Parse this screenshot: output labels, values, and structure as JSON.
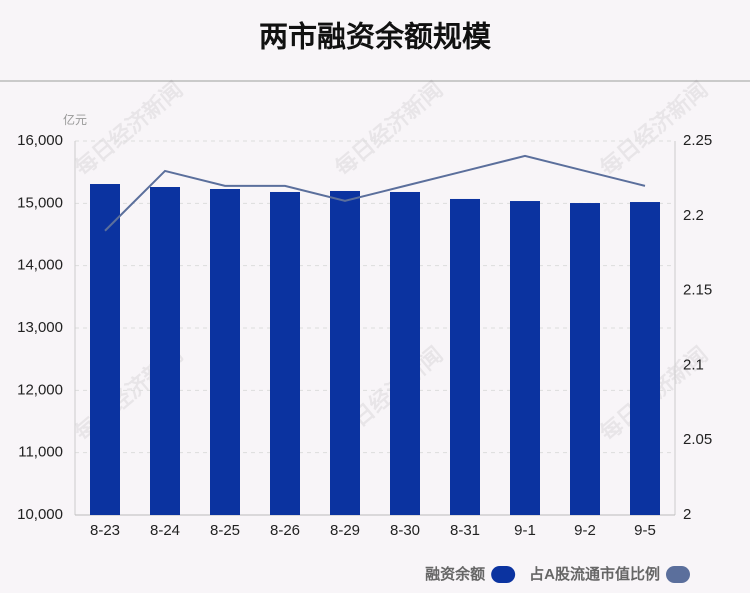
{
  "chart_data": {
    "type": "bar-line",
    "title": "两市融资余额规模",
    "y_unit": "亿元",
    "watermark": "每日经济新闻",
    "categories": [
      "8-23",
      "8-24",
      "8-25",
      "8-26",
      "8-29",
      "8-30",
      "8-31",
      "9-1",
      "9-2",
      "9-5"
    ],
    "series": [
      {
        "name": "融资余额",
        "type": "bar",
        "color": "#0b33a0",
        "values": [
          15310,
          15262,
          15230,
          15182,
          15198,
          15182,
          15070,
          15037,
          15005,
          15021
        ]
      },
      {
        "name": "占A股流通市值比例",
        "type": "line",
        "axis": "y2",
        "color": "#5b6f9c",
        "values": [
          2.19,
          2.23,
          2.22,
          2.22,
          2.21,
          2.22,
          2.23,
          2.24,
          2.23,
          2.22
        ]
      }
    ],
    "ylim": [
      10000,
      16000
    ],
    "yticks": [
      {
        "value": 10000,
        "label": "10,000"
      },
      {
        "value": 11000,
        "label": "11,000"
      },
      {
        "value": 12000,
        "label": "12,000"
      },
      {
        "value": 13000,
        "label": "13,000"
      },
      {
        "value": 14000,
        "label": "14,000"
      },
      {
        "value": 15000,
        "label": "15,000"
      },
      {
        "value": 16000,
        "label": "16,000"
      }
    ],
    "y2lim": [
      2,
      2.25
    ],
    "y2ticks": [
      2,
      2.05,
      2.1,
      2.15,
      2.2,
      2.25
    ],
    "grid": true,
    "legend": "bottom-right"
  }
}
